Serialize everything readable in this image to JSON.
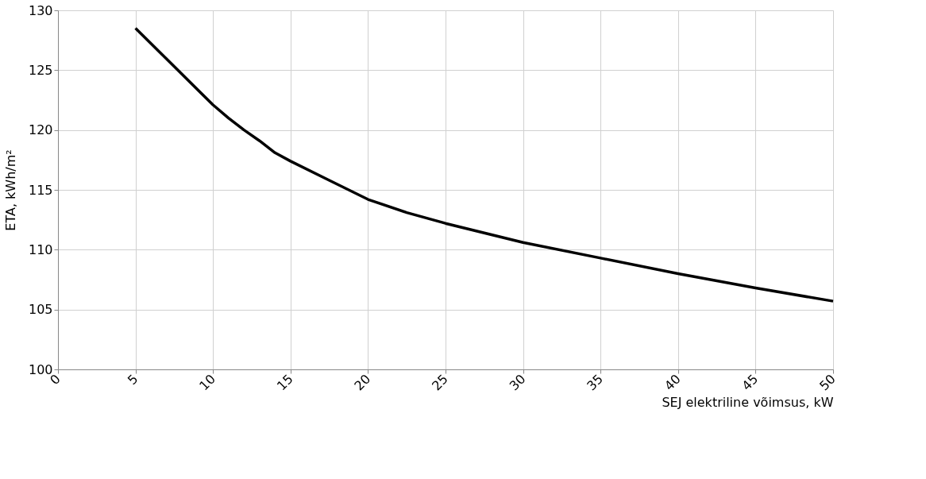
{
  "chart_data": {
    "type": "line",
    "xlabel": "SEJ elektriline võimsus, kW",
    "ylabel": "ETA, kWh/m²",
    "x": [
      5,
      7.5,
      10,
      11,
      12,
      13,
      14,
      15,
      17.5,
      20,
      22.5,
      25,
      27.5,
      30,
      35,
      40,
      45,
      50
    ],
    "series": [
      {
        "color": "#000000",
        "values": [
          128.5,
          125.3,
          122.1,
          121.0,
          120.0,
          119.1,
          118.1,
          117.4,
          115.8,
          114.2,
          113.1,
          112.2,
          111.4,
          110.6,
          109.3,
          108.0,
          106.8,
          105.7
        ]
      }
    ],
    "xlim": [
      0,
      50
    ],
    "xticks": [
      0,
      5,
      10,
      15,
      20,
      25,
      30,
      35,
      40,
      45,
      50
    ],
    "ylim": [
      100,
      130
    ],
    "yticks": [
      100,
      105,
      110,
      115,
      120,
      125,
      130
    ],
    "grid": true,
    "marker": "none",
    "line_style": "solid"
  }
}
